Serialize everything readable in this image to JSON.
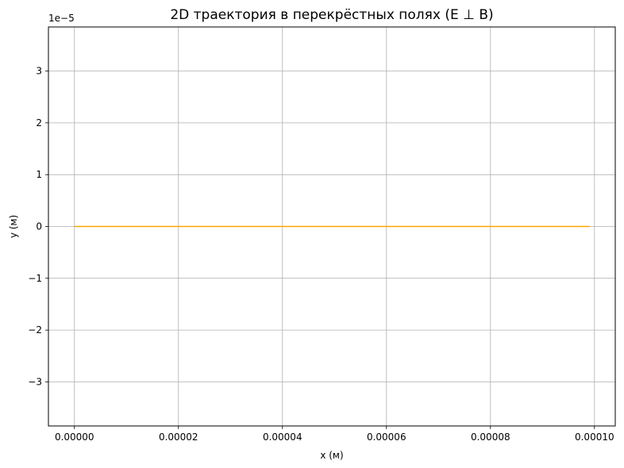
{
  "chart_data": {
    "type": "line",
    "title": "2D траектория в перекрёстных полях (E ⊥ B)",
    "xlabel": "x (м)",
    "ylabel": "y (м)",
    "y_offset_label": "1e−5",
    "xlim": [
      -5e-06,
      0.000104
    ],
    "ylim": [
      -3.85,
      3.85
    ],
    "x_ticks": [
      0,
      2e-05,
      4e-05,
      6e-05,
      8e-05,
      0.0001
    ],
    "x_tick_labels": [
      "0.00000",
      "0.00002",
      "0.00004",
      "0.00006",
      "0.00008",
      "0.00010"
    ],
    "y_ticks": [
      -3,
      -2,
      -1,
      0,
      1,
      2,
      3
    ],
    "y_tick_labels": [
      "−3",
      "−2",
      "−1",
      "0",
      "1",
      "2",
      "3"
    ],
    "grid": true,
    "series": [
      {
        "color": "#ffa500",
        "x": [
          0,
          9.91e-05
        ],
        "y": [
          0,
          0
        ]
      }
    ]
  }
}
